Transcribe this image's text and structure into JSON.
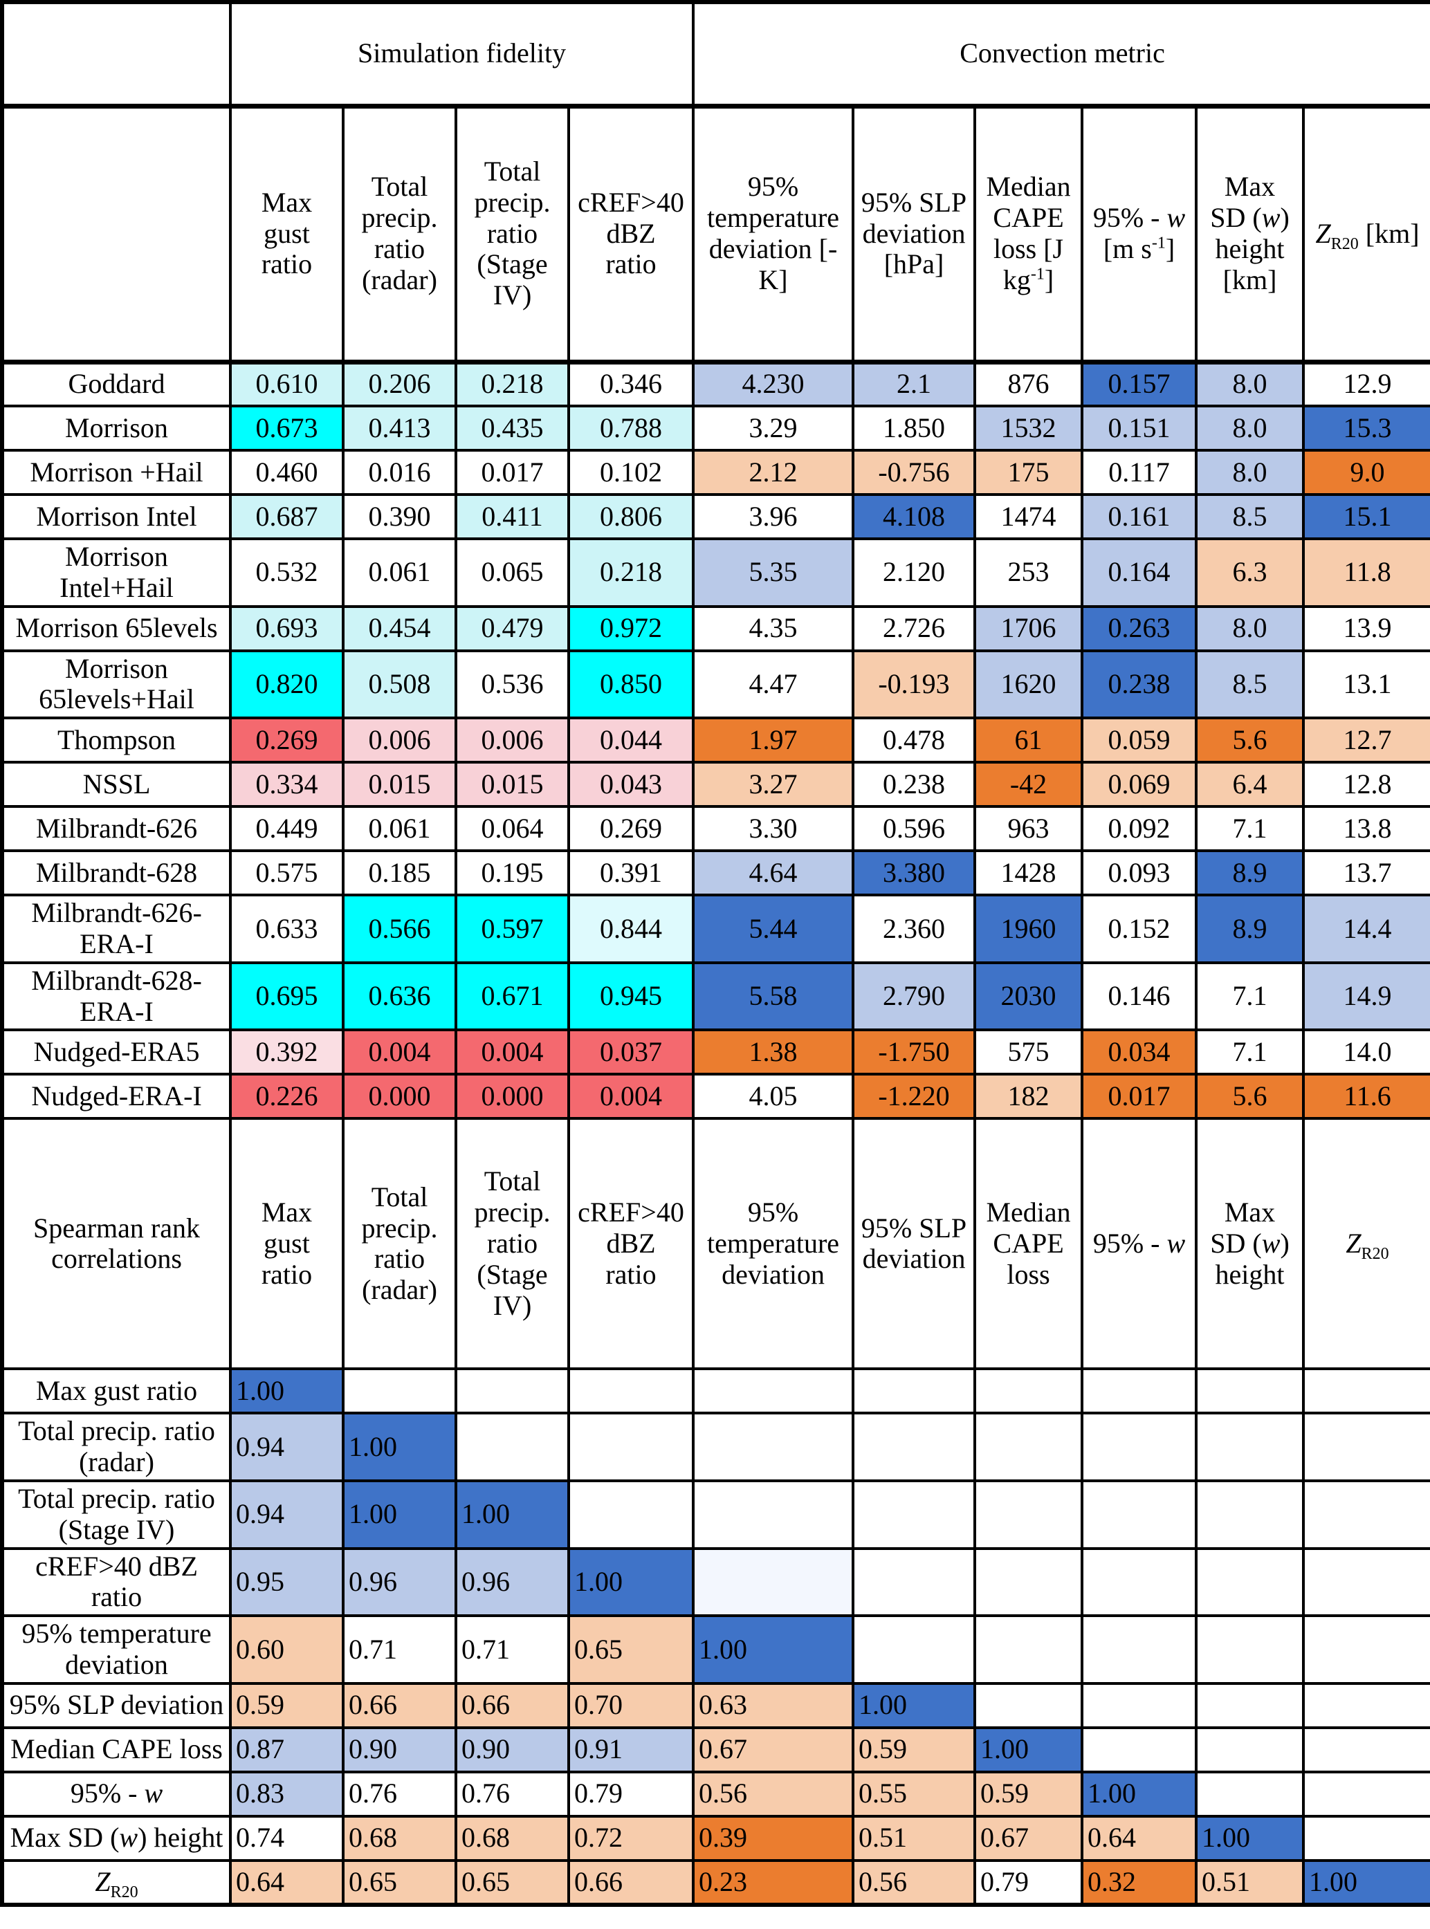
{
  "header_groups": {
    "simulation_fidelity": "Simulation fidelity",
    "convection_metric": "Convection metric"
  },
  "palette": {
    "w": "#FFFFFF",
    "c2": "#00FFFF",
    "c1": "#CDF4F7",
    "c0": "#DEFAFD",
    "p1": "#F8D1D7",
    "p0": "#FADEE3",
    "r": "#F4696F",
    "b2": "#3F73C8",
    "b1": "#B9C9E8",
    "bf": "#F3F7FE",
    "o2": "#EB7D2F",
    "o1": "#F7CCAC",
    "grid": "#000000"
  },
  "metric_columns": [
    [
      {
        "t": "Max\ngust\nratio"
      }
    ],
    [
      {
        "t": "Total\nprecip.\nratio\n(radar)"
      }
    ],
    [
      {
        "t": "Total\nprecip.\nratio\n(Stage\nIV)"
      }
    ],
    [
      {
        "t": "cREF>40\ndBZ\nratio"
      }
    ],
    [
      {
        "t": "95%\ntemperature\ndeviation [-K]"
      }
    ],
    [
      {
        "t": "95% SLP\ndeviation\n[hPa]"
      }
    ],
    [
      {
        "t": "Median\nCAPE\nloss [J kg"
      },
      {
        "t": "-1",
        "s": "sup"
      },
      {
        "t": "]"
      }
    ],
    [
      {
        "t": "95% - "
      },
      {
        "t": "w",
        "s": "i"
      },
      {
        "t": "\n[m s"
      },
      {
        "t": "-1",
        "s": "sup"
      },
      {
        "t": "]"
      }
    ],
    [
      {
        "t": "Max\nSD ("
      },
      {
        "t": "w",
        "s": "i"
      },
      {
        "t": ")\nheight\n[km]"
      }
    ],
    [
      {
        "t": "Z",
        "s": "i"
      },
      {
        "t": "R20",
        "s": "sub"
      },
      {
        "t": " [km]"
      }
    ]
  ],
  "model_rows": [
    {
      "label": [
        {
          "t": "Goddard"
        }
      ],
      "values": [
        "0.610",
        "0.206",
        "0.218",
        "0.346",
        "4.230",
        "2.1",
        "876",
        "0.157",
        "8.0",
        "12.9"
      ],
      "colors": [
        "c1",
        "c1",
        "c1",
        "w",
        "b1",
        "b1",
        "w",
        "b2",
        "b1",
        "w"
      ]
    },
    {
      "label": [
        {
          "t": "Morrison"
        }
      ],
      "values": [
        "0.673",
        "0.413",
        "0.435",
        "0.788",
        "3.29",
        "1.850",
        "1532",
        "0.151",
        "8.0",
        "15.3"
      ],
      "colors": [
        "c2",
        "c1",
        "c1",
        "c1",
        "w",
        "w",
        "b1",
        "b1",
        "b1",
        "b2"
      ]
    },
    {
      "label": [
        {
          "t": "Morrison +Hail"
        }
      ],
      "values": [
        "0.460",
        "0.016",
        "0.017",
        "0.102",
        "2.12",
        "-0.756",
        "175",
        "0.117",
        "8.0",
        "9.0"
      ],
      "colors": [
        "w",
        "w",
        "w",
        "w",
        "o1",
        "o1",
        "o1",
        "w",
        "b1",
        "o2"
      ]
    },
    {
      "label": [
        {
          "t": "Morrison Intel"
        }
      ],
      "values": [
        "0.687",
        "0.390",
        "0.411",
        "0.806",
        "3.96",
        "4.108",
        "1474",
        "0.161",
        "8.5",
        "15.1"
      ],
      "colors": [
        "c1",
        "w",
        "c1",
        "c1",
        "w",
        "b2",
        "w",
        "b1",
        "b1",
        "b2"
      ]
    },
    {
      "label": [
        {
          "t": "Morrison\nIntel+Hail"
        }
      ],
      "values": [
        "0.532",
        "0.061",
        "0.065",
        "0.218",
        "5.35",
        "2.120",
        "253",
        "0.164",
        "6.3",
        "11.8"
      ],
      "colors": [
        "w",
        "w",
        "w",
        "c1",
        "b1",
        "w",
        "w",
        "b1",
        "o1",
        "o1"
      ]
    },
    {
      "label": [
        {
          "t": "Morrison 65levels"
        }
      ],
      "values": [
        "0.693",
        "0.454",
        "0.479",
        "0.972",
        "4.35",
        "2.726",
        "1706",
        "0.263",
        "8.0",
        "13.9"
      ],
      "colors": [
        "c1",
        "c1",
        "c1",
        "c2",
        "w",
        "w",
        "b1",
        "b2",
        "b1",
        "w"
      ]
    },
    {
      "label": [
        {
          "t": "Morrison\n65levels+Hail"
        }
      ],
      "values": [
        "0.820",
        "0.508",
        "0.536",
        "0.850",
        "4.47",
        "-0.193",
        "1620",
        "0.238",
        "8.5",
        "13.1"
      ],
      "colors": [
        "c2",
        "c1",
        "w",
        "c2",
        "w",
        "o1",
        "b1",
        "b2",
        "b1",
        "w"
      ]
    },
    {
      "label": [
        {
          "t": "Thompson"
        }
      ],
      "values": [
        "0.269",
        "0.006",
        "0.006",
        "0.044",
        "1.97",
        "0.478",
        "61",
        "0.059",
        "5.6",
        "12.7"
      ],
      "colors": [
        "r",
        "p1",
        "p1",
        "p1",
        "o2",
        "w",
        "o2",
        "o1",
        "o2",
        "o1"
      ]
    },
    {
      "label": [
        {
          "t": "NSSL"
        }
      ],
      "values": [
        "0.334",
        "0.015",
        "0.015",
        "0.043",
        "3.27",
        "0.238",
        "-42",
        "0.069",
        "6.4",
        "12.8"
      ],
      "colors": [
        "p1",
        "p1",
        "p1",
        "p1",
        "o1",
        "w",
        "o2",
        "o1",
        "o1",
        "w"
      ]
    },
    {
      "label": [
        {
          "t": "Milbrandt-626"
        }
      ],
      "values": [
        "0.449",
        "0.061",
        "0.064",
        "0.269",
        "3.30",
        "0.596",
        "963",
        "0.092",
        "7.1",
        "13.8"
      ],
      "colors": [
        "w",
        "w",
        "w",
        "w",
        "w",
        "w",
        "w",
        "w",
        "w",
        "w"
      ]
    },
    {
      "label": [
        {
          "t": "Milbrandt-628"
        }
      ],
      "values": [
        "0.575",
        "0.185",
        "0.195",
        "0.391",
        "4.64",
        "3.380",
        "1428",
        "0.093",
        "8.9",
        "13.7"
      ],
      "colors": [
        "w",
        "w",
        "w",
        "w",
        "b1",
        "b2",
        "w",
        "w",
        "b2",
        "w"
      ]
    },
    {
      "label": [
        {
          "t": "Milbrandt-626-\nERA-I"
        }
      ],
      "values": [
        "0.633",
        "0.566",
        "0.597",
        "0.844",
        "5.44",
        "2.360",
        "1960",
        "0.152",
        "8.9",
        "14.4"
      ],
      "colors": [
        "w",
        "c2",
        "c2",
        "c0",
        "b2",
        "w",
        "b2",
        "w",
        "b2",
        "b1"
      ]
    },
    {
      "label": [
        {
          "t": "Milbrandt-628-\nERA-I"
        }
      ],
      "values": [
        "0.695",
        "0.636",
        "0.671",
        "0.945",
        "5.58",
        "2.790",
        "2030",
        "0.146",
        "7.1",
        "14.9"
      ],
      "colors": [
        "c2",
        "c2",
        "c2",
        "c2",
        "b2",
        "b1",
        "b2",
        "w",
        "w",
        "b1"
      ]
    },
    {
      "label": [
        {
          "t": "Nudged-ERA5"
        }
      ],
      "values": [
        "0.392",
        "0.004",
        "0.004",
        "0.037",
        "1.38",
        "-1.750",
        "575",
        "0.034",
        "7.1",
        "14.0"
      ],
      "colors": [
        "p0",
        "r",
        "r",
        "r",
        "o2",
        "o2",
        "w",
        "o2",
        "w",
        "w"
      ]
    },
    {
      "label": [
        {
          "t": "Nudged-ERA-I"
        }
      ],
      "values": [
        "0.226",
        "0.000",
        "0.000",
        "0.004",
        "4.05",
        "-1.220",
        "182",
        "0.017",
        "5.6",
        "11.6"
      ],
      "colors": [
        "r",
        "r",
        "r",
        "r",
        "w",
        "o2",
        "o1",
        "o2",
        "o2",
        "o2"
      ]
    }
  ],
  "spearman": {
    "corner": [
      {
        "t": "Spearman rank\ncorrelations"
      }
    ],
    "columns": [
      [
        {
          "t": "Max\ngust\nratio"
        }
      ],
      [
        {
          "t": "Total\nprecip.\nratio\n(radar)"
        }
      ],
      [
        {
          "t": "Total\nprecip.\nratio\n(Stage\nIV)"
        }
      ],
      [
        {
          "t": "cREF>40\ndBZ\nratio"
        }
      ],
      [
        {
          "t": "95%\ntemperature\ndeviation"
        }
      ],
      [
        {
          "t": "95% SLP\ndeviation"
        }
      ],
      [
        {
          "t": "Median\nCAPE\nloss"
        }
      ],
      [
        {
          "t": "95% - "
        },
        {
          "t": "w",
          "s": "i"
        }
      ],
      [
        {
          "t": "Max\nSD ("
        },
        {
          "t": "w",
          "s": "i"
        },
        {
          "t": ")\nheight"
        }
      ],
      [
        {
          "t": "Z",
          "s": "i"
        },
        {
          "t": "R20",
          "s": "sub"
        }
      ]
    ],
    "rows": [
      {
        "label": [
          {
            "t": "Max gust ratio"
          }
        ],
        "values": [
          "1.00",
          "",
          "",
          "",
          "",
          "",
          "",
          "",
          "",
          ""
        ],
        "colors": [
          "b2",
          "w",
          "w",
          "w",
          "w",
          "w",
          "w",
          "w",
          "w",
          "w"
        ]
      },
      {
        "label": [
          {
            "t": "Total precip. ratio\n(radar)"
          }
        ],
        "values": [
          "0.94",
          "1.00",
          "",
          "",
          "",
          "",
          "",
          "",
          "",
          ""
        ],
        "colors": [
          "b1",
          "b2",
          "w",
          "w",
          "w",
          "w",
          "w",
          "w",
          "w",
          "w"
        ]
      },
      {
        "label": [
          {
            "t": "Total precip. ratio\n(Stage IV)"
          }
        ],
        "values": [
          "0.94",
          "1.00",
          "1.00",
          "",
          "",
          "",
          "",
          "",
          "",
          ""
        ],
        "colors": [
          "b1",
          "b2",
          "b2",
          "w",
          "w",
          "w",
          "w",
          "w",
          "w",
          "w"
        ]
      },
      {
        "label": [
          {
            "t": "cREF>40 dBZ\nratio"
          }
        ],
        "values": [
          "0.95",
          "0.96",
          "0.96",
          "1.00",
          "",
          "",
          "",
          "",
          "",
          ""
        ],
        "colors": [
          "b1",
          "b1",
          "b1",
          "b2",
          "bf",
          "w",
          "w",
          "w",
          "w",
          "w"
        ]
      },
      {
        "label": [
          {
            "t": "95% temperature\ndeviation"
          }
        ],
        "values": [
          "0.60",
          "0.71",
          "0.71",
          "0.65",
          "1.00",
          "",
          "",
          "",
          "",
          ""
        ],
        "colors": [
          "o1",
          "w",
          "w",
          "o1",
          "b2",
          "w",
          "w",
          "w",
          "w",
          "w"
        ]
      },
      {
        "label": [
          {
            "t": "95% SLP deviation"
          }
        ],
        "values": [
          "0.59",
          "0.66",
          "0.66",
          "0.70",
          "0.63",
          "1.00",
          "",
          "",
          "",
          ""
        ],
        "colors": [
          "o1",
          "o1",
          "o1",
          "o1",
          "o1",
          "b2",
          "w",
          "w",
          "w",
          "w"
        ]
      },
      {
        "label": [
          {
            "t": "Median CAPE loss"
          }
        ],
        "values": [
          "0.87",
          "0.90",
          "0.90",
          "0.91",
          "0.67",
          "0.59",
          "1.00",
          "",
          "",
          ""
        ],
        "colors": [
          "b1",
          "b1",
          "b1",
          "b1",
          "o1",
          "o1",
          "b2",
          "w",
          "w",
          "w"
        ]
      },
      {
        "label": [
          {
            "t": "95% - "
          },
          {
            "t": "w",
            "s": "i"
          }
        ],
        "values": [
          "0.83",
          "0.76",
          "0.76",
          "0.79",
          "0.56",
          "0.55",
          "0.59",
          "1.00",
          "",
          ""
        ],
        "colors": [
          "b1",
          "w",
          "w",
          "w",
          "o1",
          "o1",
          "o1",
          "b2",
          "w",
          "w"
        ]
      },
      {
        "label": [
          {
            "t": "Max SD ("
          },
          {
            "t": "w",
            "s": "i"
          },
          {
            "t": ") height"
          }
        ],
        "values": [
          "0.74",
          "0.68",
          "0.68",
          "0.72",
          "0.39",
          "0.51",
          "0.67",
          "0.64",
          "1.00",
          ""
        ],
        "colors": [
          "w",
          "o1",
          "o1",
          "o1",
          "o2",
          "o1",
          "o1",
          "o1",
          "b2",
          "w"
        ]
      },
      {
        "label": [
          {
            "t": "Z",
            "s": "i"
          },
          {
            "t": "R20",
            "s": "sub"
          }
        ],
        "values": [
          "0.64",
          "0.65",
          "0.65",
          "0.66",
          "0.23",
          "0.56",
          "0.79",
          "0.32",
          "0.51",
          "1.00"
        ],
        "colors": [
          "o1",
          "o1",
          "o1",
          "o1",
          "o2",
          "o1",
          "w",
          "o2",
          "o1",
          "b2"
        ]
      }
    ]
  }
}
